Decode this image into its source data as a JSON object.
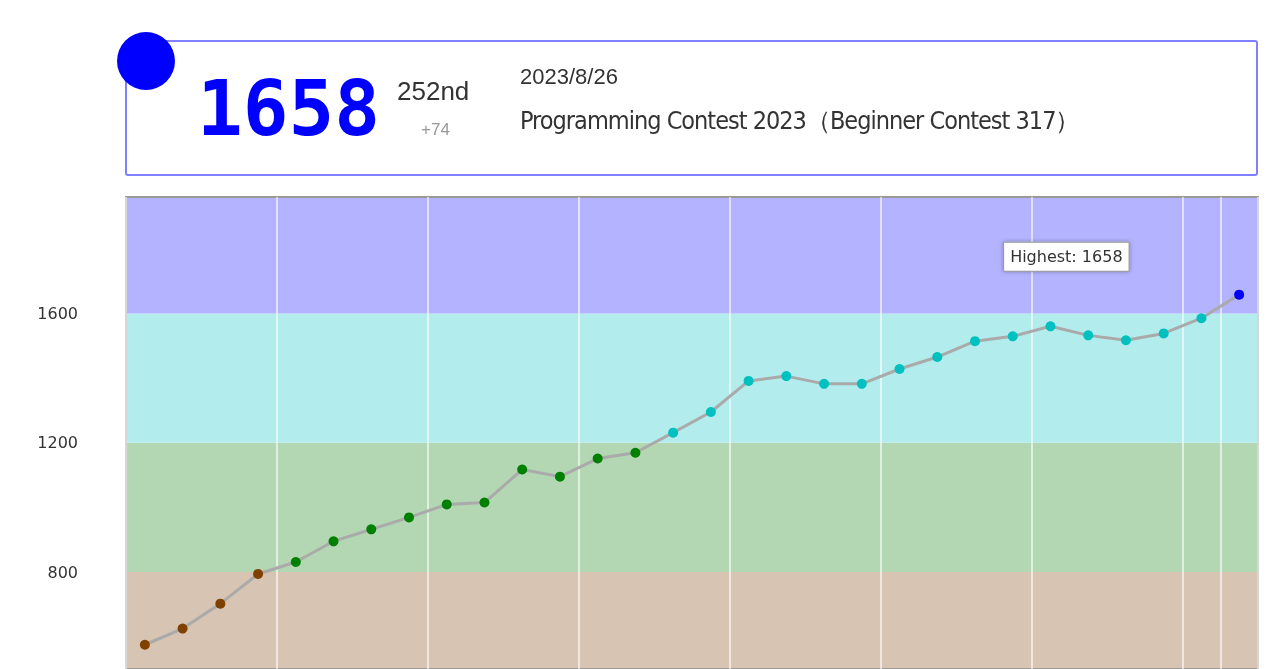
{
  "chart_data": {
    "type": "line",
    "annotations": [
      "1658",
      "252nd",
      "+74",
      "2023/8/26",
      "Programming Contest 2023（Beginner Contest 317）",
      "Highest: 1658"
    ],
    "categories": [
      null,
      null,
      null,
      null,
      null,
      null,
      null,
      null,
      null,
      null,
      null,
      null,
      null,
      null,
      null,
      null,
      null,
      null,
      null,
      null,
      null,
      null,
      null,
      null,
      null,
      null,
      null,
      null,
      null,
      null
    ],
    "series": [
      {
        "color": "#aaaaaa",
        "values": [
          575,
          625,
          702,
          794,
          831,
          895,
          932,
          969,
          1009,
          1015,
          1117,
          1095,
          1151,
          1169,
          1231,
          1295,
          1391,
          1406,
          1382,
          1382,
          1428,
          1465,
          1514,
          1529,
          1560,
          1532,
          1517,
          1538,
          1585,
          1658
        ],
        "colors": [
          "#804000",
          "#804000",
          "#804000",
          "#804000",
          "#008000",
          "#008000",
          "#008000",
          "#008000",
          "#008000",
          "#008000",
          "#008000",
          "#008000",
          "#008000",
          "#008000",
          "#00c0c0",
          "#00c0c0",
          "#00c0c0",
          "#00c0c0",
          "#00c0c0",
          "#00c0c0",
          "#00c0c0",
          "#00c0c0",
          "#00c0c0",
          "#00c0c0",
          "#00c0c0",
          "#00c0c0",
          "#00c0c0",
          "#00c0c0",
          "#00c0c0",
          "#0000ff"
        ]
      }
    ],
    "ylim": [
      500,
      1960
    ],
    "yticks": [
      800,
      1200,
      1600
    ],
    "bands": [
      {
        "axis": "y",
        "from": 500,
        "to": 800,
        "color": "#d7c4b2"
      },
      {
        "axis": "y",
        "from": 800,
        "to": 1200,
        "color": "#b3d7b3"
      },
      {
        "axis": "y",
        "from": 1200,
        "to": 1600,
        "color": "#b3ecec"
      },
      {
        "axis": "y",
        "from": 1600,
        "to": 1960,
        "color": "#b3b3ff"
      }
    ],
    "grid": "x",
    "marker": "circle",
    "line_style": "solid",
    "tick_labels": "y"
  }
}
